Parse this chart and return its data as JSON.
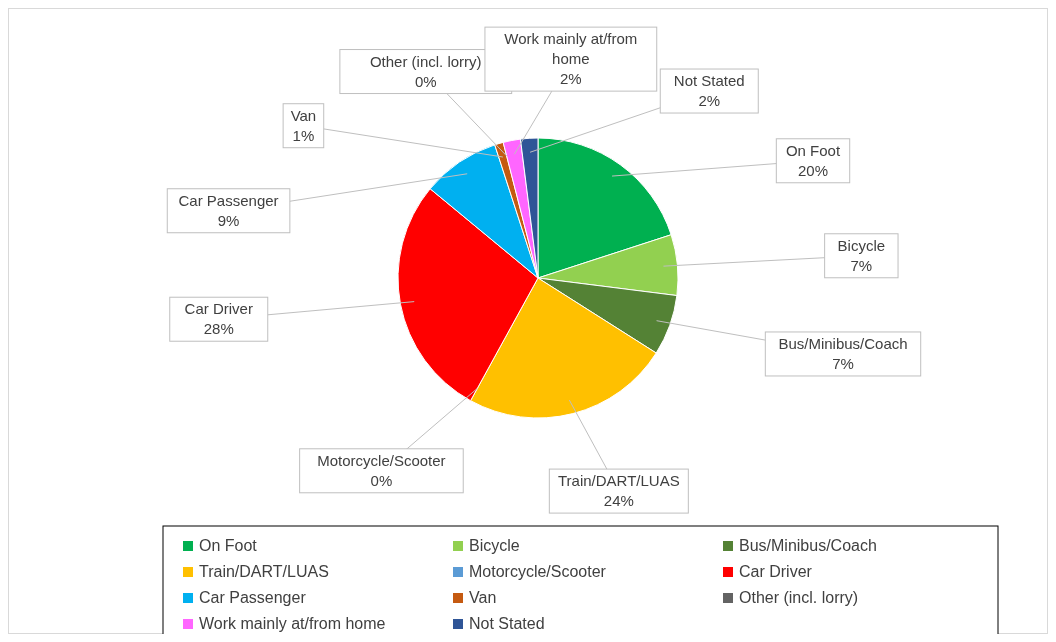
{
  "chart_data": {
    "type": "pie",
    "categories": [
      "On Foot",
      "Bicycle",
      "Bus/Minibus/Coach",
      "Train/DART/LUAS",
      "Motorcycle/Scooter",
      "Car Driver",
      "Car Passenger",
      "Van",
      "Other (incl. lorry)",
      "Work mainly at/from home",
      "Not Stated"
    ],
    "values": [
      20,
      7,
      7,
      24,
      0,
      28,
      9,
      1,
      0,
      2,
      2
    ],
    "value_labels": [
      "20%",
      "7%",
      "7%",
      "24%",
      "0%",
      "28%",
      "9%",
      "1%",
      "0%",
      "2%",
      "2%"
    ],
    "colors": [
      "#00b050",
      "#92d050",
      "#548235",
      "#ffc000",
      "#5b9bd5",
      "#ff0000",
      "#00b0f0",
      "#c55a11",
      "#636363",
      "#ff66ff",
      "#2f5597"
    ],
    "legend": "bottom"
  }
}
